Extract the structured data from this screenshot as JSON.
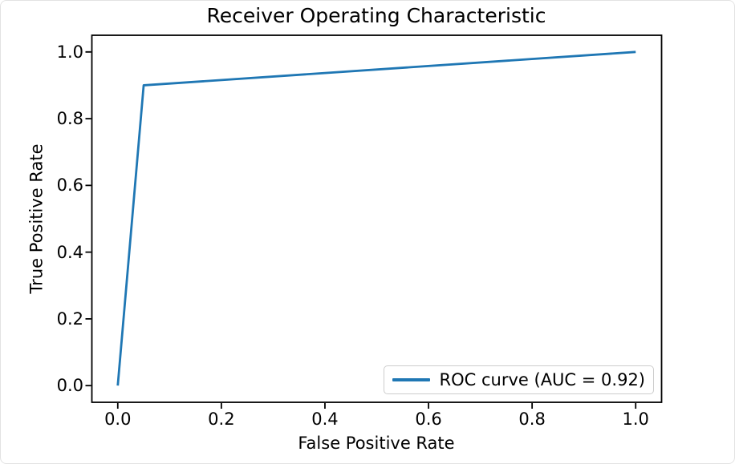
{
  "window": {
    "background": "#ffffff",
    "border_color": "#e3e3e3"
  },
  "chart_data": {
    "type": "line",
    "title": "Receiver Operating Characteristic",
    "xlabel": "False Positive Rate",
    "ylabel": "True Positive Rate",
    "xlim": [
      -0.05,
      1.05
    ],
    "ylim": [
      -0.05,
      1.05
    ],
    "xtick_values": [
      0.0,
      0.2,
      0.4,
      0.6,
      0.8,
      1.0
    ],
    "xtick_labels": [
      "0.0",
      "0.2",
      "0.4",
      "0.6",
      "0.8",
      "1.0"
    ],
    "ytick_values": [
      0.0,
      0.2,
      0.4,
      0.6,
      0.8,
      1.0
    ],
    "ytick_labels": [
      "0.0",
      "0.2",
      "0.4",
      "0.6",
      "0.8",
      "1.0"
    ],
    "grid": false,
    "axis_color": "#000000",
    "legend": {
      "position": "lower-right",
      "label": "ROC curve (AUC = 0.92)"
    },
    "series": [
      {
        "name": "ROC curve",
        "color": "#1f77b4",
        "line_width": 2.8,
        "x": [
          0.0,
          0.05,
          1.0
        ],
        "y": [
          0.0,
          0.9,
          1.0
        ]
      }
    ],
    "auc": 0.92
  }
}
